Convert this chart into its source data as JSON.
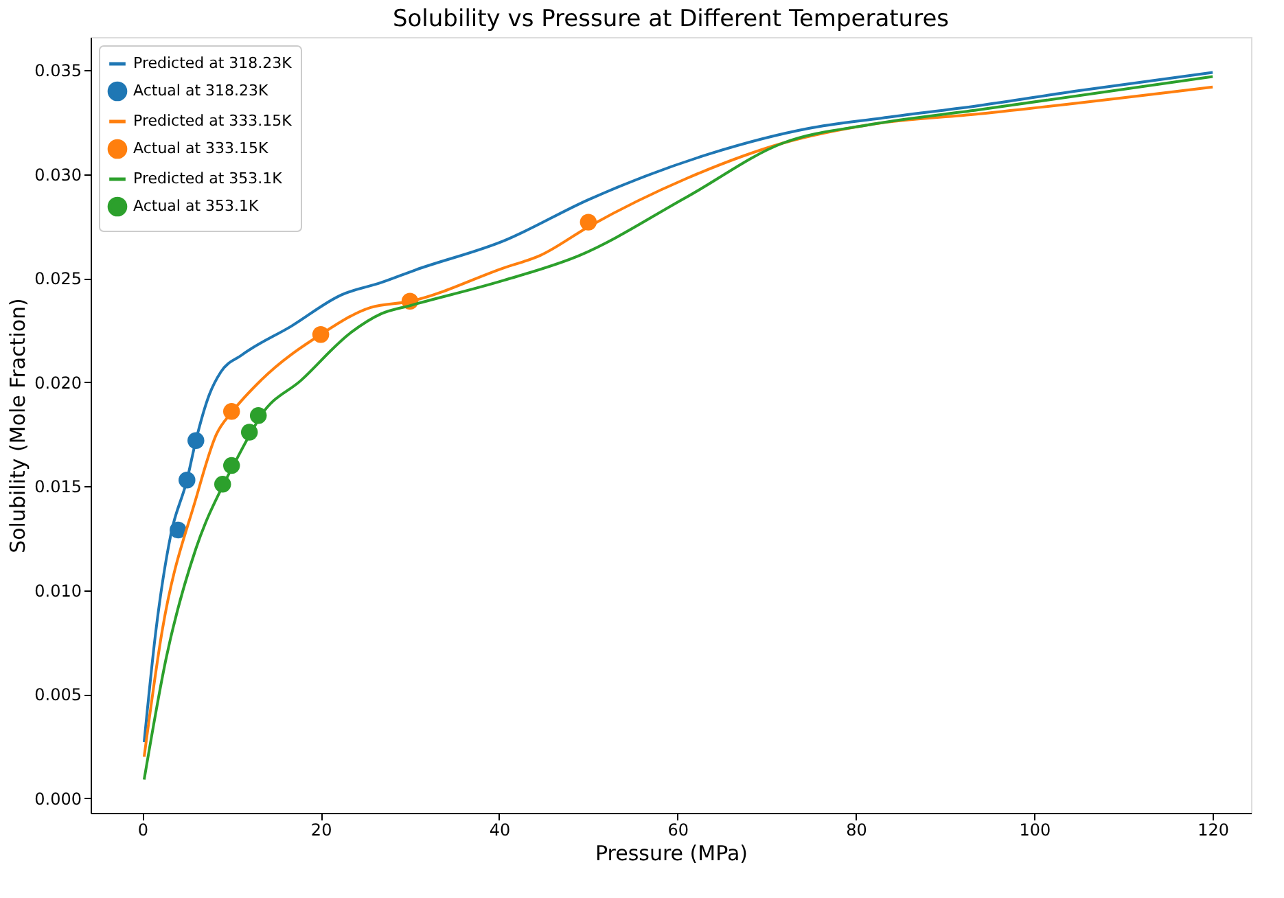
{
  "chart_data": {
    "type": "line",
    "title": "Solubility vs Pressure at Different Temperatures",
    "xlabel": "Pressure (MPa)",
    "ylabel": "Solubility (Mole Fraction)",
    "xlim": [
      -5.8,
      124.3
    ],
    "ylim": [
      -0.0007,
      0.0366
    ],
    "xticks": [
      0,
      20,
      40,
      60,
      80,
      100,
      120
    ],
    "yticks": [
      {
        "value": 0,
        "label": "0.000"
      },
      {
        "value": 0.005,
        "label": "0.005"
      },
      {
        "value": 0.01,
        "label": "0.010"
      },
      {
        "value": 0.015,
        "label": "0.015"
      },
      {
        "value": 0.02,
        "label": "0.020"
      },
      {
        "value": 0.025,
        "label": "0.025"
      },
      {
        "value": 0.03,
        "label": "0.030"
      },
      {
        "value": 0.035,
        "label": "0.035"
      }
    ],
    "grid": false,
    "legend": "top left",
    "series": [
      {
        "name": "Predicted at 318.23K",
        "color": "#1f77b4",
        "x": [
          0.2,
          1.5,
          3.2,
          5.0,
          6.0,
          7.5,
          8.8,
          11.1,
          16.7,
          22.3,
          26.8,
          30.6,
          40.5,
          50.1,
          63.7,
          74.6,
          82.8,
          93.7,
          104.6,
          120
        ],
        "values": [
          0.0027,
          0.008,
          0.0127,
          0.0153,
          0.0172,
          0.0194,
          0.0205,
          0.0213,
          0.0227,
          0.0242,
          0.0248,
          0.0254,
          0.0268,
          0.0288,
          0.031,
          0.0322,
          0.0327,
          0.0333,
          0.034,
          0.0349
        ]
      },
      {
        "name": "Actual at 318.23K",
        "type": "scatter",
        "marker": "circle",
        "color": "#1f77b4",
        "x": [
          4,
          5,
          6
        ],
        "values": [
          0.0129,
          0.0153,
          0.0172
        ]
      },
      {
        "name": "Predicted at 333.15K",
        "color": "#ff7f0e",
        "x": [
          0.2,
          2.2,
          6.0,
          8.3,
          10.1,
          13.3,
          20,
          25.6,
          30.1,
          40.5,
          44.6,
          50.1,
          61,
          71.8,
          81.7,
          93.7,
          120
        ],
        "values": [
          0.002,
          0.008,
          0.0144,
          0.0175,
          0.0186,
          0.0201,
          0.0223,
          0.0236,
          0.0239,
          0.0255,
          0.0261,
          0.0275,
          0.0298,
          0.0315,
          0.0324,
          0.0329,
          0.0342
        ]
      },
      {
        "name": "Actual at 333.15K",
        "type": "scatter",
        "marker": "circle",
        "color": "#ff7f0e",
        "x": [
          10,
          20,
          30,
          50
        ],
        "values": [
          0.0186,
          0.0223,
          0.0239,
          0.0277
        ]
      },
      {
        "name": "Predicted at 353.1K",
        "color": "#2ca02c",
        "x": [
          0.2,
          2.7,
          6.0,
          9.1,
          10.2,
          12.2,
          13.3,
          17.8,
          23.4,
          26.8,
          30.1,
          40.5,
          49,
          61,
          71.8,
          81.7,
          93.7,
          120
        ],
        "values": [
          0.0009,
          0.0068,
          0.012,
          0.0151,
          0.016,
          0.0176,
          0.0184,
          0.0201,
          0.0224,
          0.0233,
          0.0237,
          0.0249,
          0.0261,
          0.0289,
          0.0315,
          0.0324,
          0.0331,
          0.0347
        ]
      },
      {
        "name": "Actual at 353.1K",
        "type": "scatter",
        "marker": "circle",
        "color": "#2ca02c",
        "x": [
          9,
          10,
          12,
          13
        ],
        "values": [
          0.0151,
          0.016,
          0.0176,
          0.0184
        ]
      }
    ]
  }
}
